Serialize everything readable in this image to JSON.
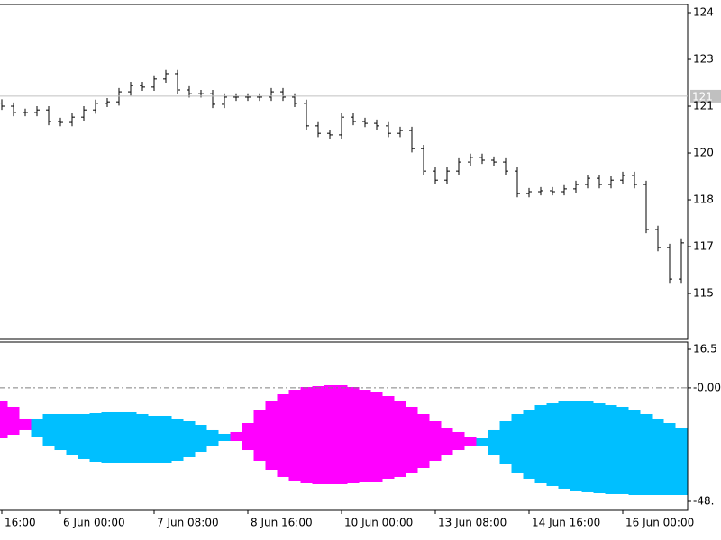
{
  "chart_data": [
    {
      "type": "ohlc",
      "color": "#000000",
      "open": [
        121.1,
        121.0,
        120.8,
        120.8,
        120.88,
        120.51,
        120.48,
        120.65,
        120.88,
        121.09,
        121.14,
        121.46,
        121.66,
        121.61,
        121.87,
        122.04,
        121.52,
        121.4,
        121.4,
        121.06,
        121.29,
        121.29,
        121.29,
        121.29,
        121.46,
        121.29,
        121.09,
        120.37,
        120.13,
        120.08,
        120.65,
        120.51,
        120.45,
        120.37,
        120.13,
        120.22,
        119.64,
        118.92,
        118.63,
        118.92,
        119.21,
        119.36,
        119.27,
        119.21,
        118.92,
        118.2,
        118.26,
        118.29,
        118.26,
        118.35,
        118.49,
        118.69,
        118.49,
        118.63,
        118.78,
        118.49,
        117.05,
        116.47,
        115.46
      ],
      "high": [
        121.22,
        121.12,
        120.92,
        121.0,
        121.0,
        120.63,
        120.77,
        121.0,
        121.21,
        121.26,
        121.58,
        121.78,
        121.78,
        121.99,
        122.16,
        122.16,
        121.64,
        121.52,
        121.52,
        121.41,
        121.41,
        121.41,
        121.41,
        121.58,
        121.58,
        121.41,
        121.21,
        120.49,
        120.25,
        120.77,
        120.77,
        120.63,
        120.57,
        120.49,
        120.34,
        120.34,
        119.76,
        119.04,
        119.04,
        119.33,
        119.48,
        119.48,
        119.39,
        119.33,
        119.04,
        118.38,
        118.41,
        118.41,
        118.47,
        118.61,
        118.81,
        118.81,
        118.75,
        118.9,
        118.9,
        118.61,
        117.17,
        116.59,
        116.74
      ],
      "low": [
        120.88,
        120.68,
        120.68,
        120.68,
        120.39,
        120.36,
        120.36,
        120.53,
        120.76,
        120.97,
        121.02,
        121.34,
        121.49,
        121.49,
        121.75,
        121.4,
        121.28,
        121.28,
        120.94,
        120.94,
        121.17,
        121.17,
        121.17,
        121.17,
        121.17,
        120.97,
        120.25,
        120.01,
        119.96,
        119.96,
        120.39,
        120.33,
        120.25,
        120.01,
        120.01,
        119.52,
        118.8,
        118.51,
        118.51,
        118.8,
        119.09,
        119.15,
        119.09,
        118.8,
        118.08,
        118.08,
        118.14,
        118.14,
        118.14,
        118.23,
        118.37,
        118.37,
        118.37,
        118.51,
        118.37,
        116.93,
        116.35,
        115.34,
        115.34
      ],
      "close": [
        121.0,
        120.8,
        120.8,
        120.88,
        120.51,
        120.48,
        120.65,
        120.88,
        121.09,
        121.14,
        121.46,
        121.66,
        121.61,
        121.87,
        122.04,
        121.52,
        121.4,
        121.4,
        121.06,
        121.29,
        121.29,
        121.29,
        121.29,
        121.46,
        121.29,
        121.09,
        120.37,
        120.13,
        120.08,
        120.65,
        120.51,
        120.45,
        120.37,
        120.13,
        120.22,
        119.64,
        118.92,
        118.63,
        118.92,
        119.21,
        119.36,
        119.27,
        119.21,
        118.92,
        118.2,
        118.26,
        118.29,
        118.26,
        118.35,
        118.49,
        118.69,
        118.49,
        118.63,
        118.78,
        118.49,
        117.05,
        116.47,
        115.46,
        116.62
      ],
      "ylim": [
        113.53,
        124.26
      ],
      "yticks": [
        124,
        {
          "value": 122.5,
          "label": "123"
        },
        121,
        {
          "value": 119.5,
          "label": "120"
        },
        118,
        {
          "value": 116.5,
          "label": "117"
        },
        115
      ],
      "last_price": {
        "value": 121.32,
        "label": "121"
      },
      "last_price_color": "#c0c0c0"
    },
    {
      "type": "band",
      "categories": [
        "16:00",
        null,
        null,
        null,
        null,
        "6 Jun 00:00",
        null,
        null,
        null,
        null,
        null,
        null,
        null,
        "7 Jun 08:00",
        null,
        null,
        null,
        null,
        null,
        null,
        null,
        "8 Jun 16:00",
        null,
        null,
        null,
        null,
        null,
        null,
        null,
        "10 Jun 00:00",
        null,
        null,
        null,
        null,
        null,
        null,
        null,
        "13 Jun 08:00",
        null,
        null,
        null,
        null,
        null,
        null,
        null,
        "14 Jun 16:00",
        null,
        null,
        null,
        null,
        null,
        null,
        null,
        "16 Jun 00:00",
        null,
        null,
        null,
        null,
        null
      ],
      "series": [
        {
          "color": "#ff00ff",
          "upper": [
            -5.42,
            -8.11,
            -13.11,
            null,
            null,
            null,
            null,
            null,
            null,
            null,
            null,
            null,
            null,
            null,
            null,
            null,
            null,
            null,
            null,
            null,
            -18.88,
            -15.04,
            -9.27,
            -5.42,
            -2.73,
            -0.81,
            0.35,
            0.73,
            1.12,
            1.12,
            0.35,
            -0.81,
            -1.96,
            -3.5,
            -5.42,
            -8.11,
            -11.19,
            -14.27,
            -16.96,
            -18.88,
            -20.81,
            null,
            null,
            null,
            null,
            null,
            null,
            null,
            null,
            null,
            null,
            null,
            null,
            null,
            null,
            null,
            null,
            null,
            null
          ],
          "lower": [
            -21.58,
            -20.04,
            -18.11,
            null,
            null,
            null,
            null,
            null,
            null,
            null,
            null,
            null,
            null,
            null,
            null,
            null,
            null,
            null,
            null,
            null,
            -22.73,
            -26.58,
            -31.19,
            -35.04,
            -38.11,
            -39.65,
            -40.81,
            -41.19,
            -41.19,
            -41.19,
            -40.81,
            -40.42,
            -40.04,
            -38.88,
            -38.11,
            -36.19,
            -34.27,
            -31.19,
            -28.5,
            -26.58,
            -24.65,
            null,
            null,
            null,
            null,
            null,
            null,
            null,
            null,
            null,
            null,
            null,
            null,
            null,
            null,
            null,
            null,
            null,
            null
          ]
        },
        {
          "color": "#00bfff",
          "upper": [
            null,
            null,
            null,
            -13.11,
            -11.19,
            -11.19,
            -11.19,
            -11.19,
            -10.81,
            -10.42,
            -10.42,
            -10.42,
            -11.19,
            -11.96,
            -11.96,
            -13.11,
            -14.27,
            -15.81,
            -18.11,
            -19.65,
            null,
            null,
            null,
            null,
            null,
            null,
            null,
            null,
            null,
            null,
            null,
            null,
            null,
            null,
            null,
            null,
            null,
            null,
            null,
            null,
            null,
            -21.58,
            -18.11,
            -14.27,
            -11.19,
            -9.27,
            -7.35,
            -6.58,
            -5.81,
            -5.42,
            -5.81,
            -6.58,
            -7.35,
            -8.11,
            -9.65,
            -11.19,
            -13.11,
            -15.04,
            -16.96
          ],
          "lower": [
            null,
            null,
            null,
            -20.81,
            -24.65,
            -26.58,
            -28.5,
            -30.42,
            -31.58,
            -31.96,
            -31.96,
            -31.96,
            -31.96,
            -31.96,
            -31.96,
            -31.19,
            -29.65,
            -27.35,
            -25.04,
            -22.73,
            null,
            null,
            null,
            null,
            null,
            null,
            null,
            null,
            null,
            null,
            null,
            null,
            null,
            null,
            null,
            null,
            null,
            null,
            null,
            null,
            null,
            -24.65,
            -28.5,
            -32.35,
            -36.19,
            -38.88,
            -40.81,
            -41.96,
            -43.11,
            -43.88,
            -44.65,
            -45.04,
            -45.42,
            -45.42,
            -45.81,
            -45.81,
            -45.81,
            -45.81,
            -45.81
          ]
        }
      ],
      "ylim": [
        -52.35,
        19.58
      ],
      "yticks": [
        16.5,
        {
          "value": 0,
          "label": "-0.00"
        },
        {
          "value": -48.5,
          "label": "-48."
        }
      ],
      "zero_line": true
    }
  ]
}
